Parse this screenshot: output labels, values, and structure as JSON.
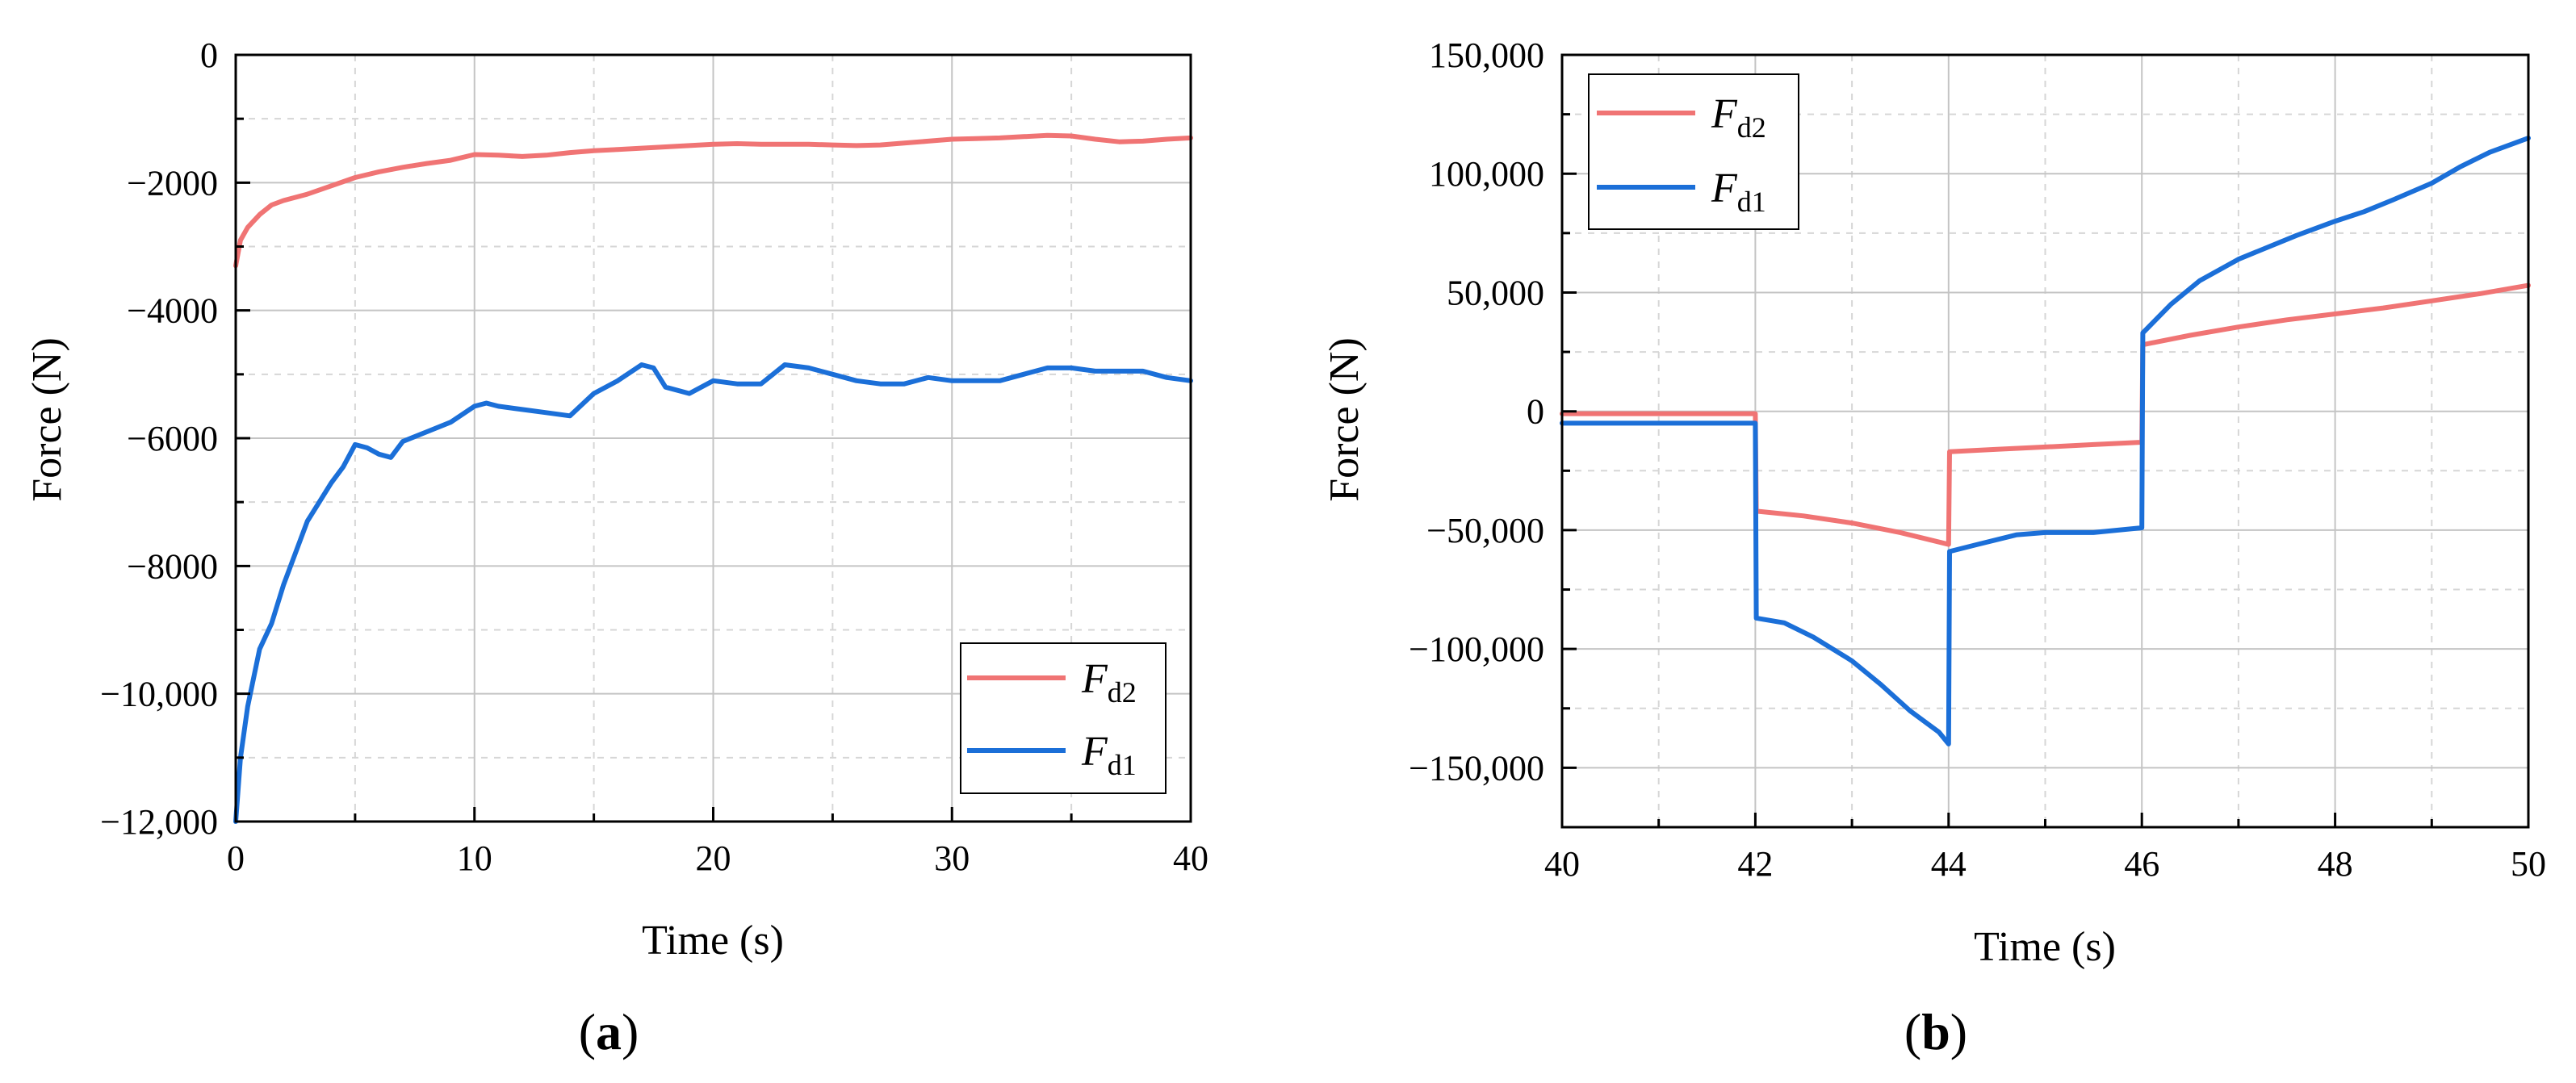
{
  "chart_data": [
    {
      "type": "line",
      "panel_label": "a",
      "xlabel": "Time (s)",
      "ylabel": "Force (N)",
      "xlim": [
        0,
        40
      ],
      "ylim": [
        -12000,
        0
      ],
      "xticks": [
        0,
        10,
        20,
        30,
        40
      ],
      "xtick_labels": [
        "0",
        "10",
        "20",
        "30",
        "40"
      ],
      "yticks": [
        0,
        -2000,
        -4000,
        -6000,
        -8000,
        -10000,
        -12000
      ],
      "ytick_labels": [
        "0",
        "−2000",
        "−4000",
        "−6000",
        "−8000",
        "−10,000",
        "−12,000"
      ],
      "grid": true,
      "legend_position": "bottom-right",
      "series": [
        {
          "name": "F",
          "subscript": "d2",
          "color": "#f07474",
          "x": [
            0,
            0.2,
            0.5,
            1,
            1.5,
            2,
            3,
            4,
            5,
            6,
            7,
            8,
            9,
            10,
            11,
            12,
            13,
            14,
            15,
            16,
            17,
            18,
            19,
            20,
            21,
            22,
            23,
            24,
            25,
            26,
            27,
            28,
            29,
            30,
            31,
            32,
            33,
            34,
            35,
            36,
            37,
            38,
            39,
            40
          ],
          "values": [
            -3300,
            -2900,
            -2700,
            -2500,
            -2350,
            -2280,
            -2180,
            -2050,
            -1920,
            -1830,
            -1760,
            -1700,
            -1650,
            -1560,
            -1570,
            -1590,
            -1570,
            -1530,
            -1500,
            -1480,
            -1460,
            -1440,
            -1420,
            -1400,
            -1390,
            -1400,
            -1400,
            -1400,
            -1410,
            -1420,
            -1410,
            -1380,
            -1350,
            -1320,
            -1310,
            -1300,
            -1280,
            -1260,
            -1270,
            -1320,
            -1360,
            -1350,
            -1320,
            -1300
          ]
        },
        {
          "name": "F",
          "subscript": "d1",
          "color": "#1b6fd8",
          "x": [
            0,
            0.2,
            0.5,
            1,
            1.5,
            2,
            2.5,
            3,
            3.5,
            4,
            4.5,
            5,
            5.5,
            6,
            6.5,
            7,
            8,
            9,
            10,
            10.5,
            11,
            12,
            13,
            14,
            15,
            16,
            17,
            17.5,
            18,
            19,
            20,
            21,
            22,
            23,
            24,
            25,
            26,
            27,
            28,
            29,
            30,
            31,
            32,
            33,
            34,
            35,
            36,
            37,
            38,
            39,
            40
          ],
          "values": [
            -12000,
            -11000,
            -10200,
            -9300,
            -8900,
            -8300,
            -7800,
            -7300,
            -7000,
            -6700,
            -6450,
            -6100,
            -6150,
            -6250,
            -6300,
            -6050,
            -5900,
            -5750,
            -5500,
            -5450,
            -5500,
            -5550,
            -5600,
            -5650,
            -5300,
            -5100,
            -4850,
            -4900,
            -5200,
            -5300,
            -5100,
            -5150,
            -5150,
            -4850,
            -4900,
            -5000,
            -5100,
            -5150,
            -5150,
            -5050,
            -5100,
            -5100,
            -5100,
            -5000,
            -4900,
            -4900,
            -4950,
            -4950,
            -4950,
            -5050,
            -5100
          ]
        }
      ]
    },
    {
      "type": "line",
      "panel_label": "b",
      "xlabel": "Time (s)",
      "ylabel": "Force (N)",
      "xlim": [
        40,
        50
      ],
      "ylim": [
        -175000,
        150000
      ],
      "xticks": [
        40,
        42,
        44,
        46,
        48,
        50
      ],
      "xtick_labels": [
        "40",
        "42",
        "44",
        "46",
        "48",
        "50"
      ],
      "yticks": [
        150000,
        100000,
        50000,
        0,
        -50000,
        -100000,
        -150000
      ],
      "ytick_labels": [
        "150,000",
        "100,000",
        "50,000",
        "0",
        "−50,000",
        "−100,000",
        "−150,000"
      ],
      "grid": true,
      "legend_position": "top-left",
      "series": [
        {
          "name": "F",
          "subscript": "d2",
          "color": "#f07474",
          "x": [
            40,
            41,
            42,
            42.01,
            42.5,
            43,
            43.5,
            44,
            44.01,
            44.5,
            45,
            45.5,
            46,
            46.01,
            46.5,
            47,
            47.5,
            48,
            48.5,
            49,
            49.5,
            50
          ],
          "values": [
            -1000,
            -1000,
            -1000,
            -42000,
            -44000,
            -47000,
            -51000,
            -56000,
            -17000,
            -16000,
            -15000,
            -14000,
            -13000,
            28000,
            32000,
            35500,
            38500,
            41000,
            43500,
            46500,
            49500,
            53000
          ]
        },
        {
          "name": "F",
          "subscript": "d1",
          "color": "#1b6fd8",
          "x": [
            40,
            41,
            42,
            42.01,
            42.3,
            42.6,
            43,
            43.3,
            43.6,
            43.9,
            44,
            44.01,
            44.3,
            44.7,
            45,
            45.5,
            46,
            46.01,
            46.3,
            46.6,
            47,
            47.3,
            47.6,
            48,
            48.3,
            48.6,
            49,
            49.3,
            49.6,
            50
          ],
          "values": [
            -5000,
            -5000,
            -5000,
            -87000,
            -89000,
            -95000,
            -105000,
            -115000,
            -126000,
            -135000,
            -140000,
            -59000,
            -56000,
            -52000,
            -51000,
            -51000,
            -49000,
            33000,
            45000,
            55000,
            64000,
            69000,
            74000,
            80000,
            84000,
            89000,
            96000,
            103000,
            109000,
            115000
          ]
        }
      ]
    }
  ]
}
